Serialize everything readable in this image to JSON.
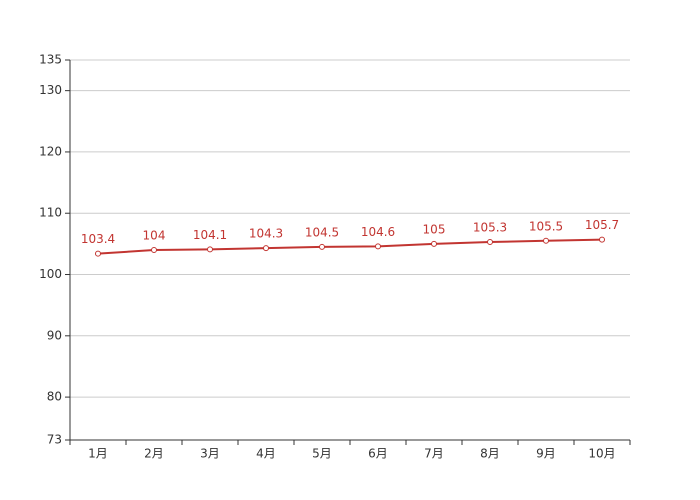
{
  "chart_data": {
    "type": "line",
    "categories": [
      "1月",
      "2月",
      "3月",
      "4月",
      "5月",
      "6月",
      "7月",
      "8月",
      "9月",
      "10月"
    ],
    "values": [
      103.4,
      104,
      104.1,
      104.3,
      104.5,
      104.6,
      105,
      105.3,
      105.5,
      105.7
    ],
    "color": "#c23531",
    "ylim": [
      73,
      135
    ],
    "yticks": [
      73,
      80,
      90,
      100,
      110,
      120,
      130,
      135
    ],
    "grid": true
  }
}
